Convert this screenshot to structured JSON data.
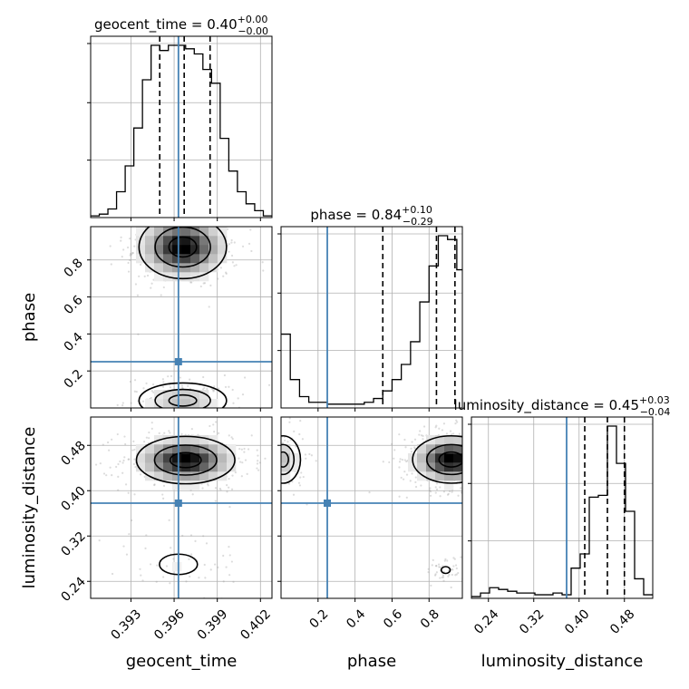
{
  "chart_data": {
    "type": "corner",
    "parameters": [
      {
        "key": "geocent_time",
        "label": "geocent_time",
        "range": [
          0.3902,
          0.4028
        ],
        "ticks": [
          0.393,
          0.396,
          0.399,
          0.402
        ],
        "tick_labels": [
          "0.393",
          "0.396",
          "0.399",
          "0.402"
        ],
        "injection": 0.3963
      },
      {
        "key": "phase",
        "label": "phase",
        "range": [
          0.0,
          0.98
        ],
        "ticks": [
          0.2,
          0.4,
          0.6,
          0.8
        ],
        "tick_labels": [
          "0.2",
          "0.4",
          "0.6",
          "0.8"
        ],
        "injection": 0.25
      },
      {
        "key": "luminosity_distance",
        "label": "luminosity_distance",
        "range": [
          0.21,
          0.53
        ],
        "ticks": [
          0.24,
          0.32,
          0.4,
          0.48
        ],
        "tick_labels": [
          "0.24",
          "0.32",
          "0.40",
          "0.48"
        ],
        "injection": 0.378
      }
    ],
    "titles": [
      {
        "text": "geocent_time = 0.40",
        "sup": "+0.00",
        "sub": "−0.00"
      },
      {
        "text": "phase = 0.84",
        "sup": "+0.10",
        "sub": "−0.29"
      },
      {
        "text": "luminosity_distance = 0.45",
        "sup": "+0.03",
        "sub": "−0.04"
      }
    ],
    "diagonal": [
      {
        "edges": [
          0.3902,
          0.3908,
          0.3914,
          0.392,
          0.3926,
          0.3932,
          0.3938,
          0.3944,
          0.395,
          0.3956,
          0.3962,
          0.3968,
          0.3974,
          0.398,
          0.3986,
          0.3992,
          0.3998,
          0.4004,
          0.401,
          0.4016,
          0.4022,
          0.4028
        ],
        "counts": [
          1,
          2,
          5,
          15,
          30,
          52,
          80,
          100,
          97,
          100,
          100,
          98,
          95,
          86,
          78,
          46,
          27,
          15,
          8,
          4,
          1
        ],
        "quantiles": [
          0.395,
          0.3967,
          0.3985
        ],
        "injection": 0.3963
      },
      {
        "edges": [
          0.0,
          0.05,
          0.1,
          0.15,
          0.2,
          0.25,
          0.3,
          0.35,
          0.4,
          0.45,
          0.5,
          0.55,
          0.6,
          0.65,
          0.7,
          0.75,
          0.8,
          0.85,
          0.9,
          0.95,
          1.0
        ],
        "counts": [
          39,
          15,
          6,
          3,
          3,
          2,
          2,
          2,
          2,
          3,
          5,
          9,
          15,
          23,
          35,
          56,
          75,
          91,
          89,
          73
        ],
        "quantiles": [
          0.55,
          0.84,
          0.94
        ],
        "injection": 0.25
      },
      {
        "edges": [
          0.21,
          0.226,
          0.242,
          0.258,
          0.274,
          0.29,
          0.306,
          0.322,
          0.338,
          0.354,
          0.37,
          0.386,
          0.402,
          0.418,
          0.434,
          0.45,
          0.466,
          0.482,
          0.498,
          0.514,
          0.53
        ],
        "counts": [
          1,
          3,
          6,
          5,
          4,
          3,
          3,
          2,
          2,
          3,
          2,
          17,
          25,
          57,
          58,
          97,
          76,
          49,
          11,
          2
        ],
        "quantiles": [
          0.41,
          0.45,
          0.48
        ],
        "injection": 0.378
      }
    ],
    "pairs": [
      {
        "x": 0,
        "y": 1,
        "modes": [
          {
            "cx": 0.3966,
            "cy": 0.87,
            "sx": 0.0016,
            "sy": 0.09,
            "weight": 1.0
          },
          {
            "cx": 0.3966,
            "cy": 0.04,
            "sx": 0.0016,
            "sy": 0.05,
            "weight": 0.35
          }
        ],
        "injection": [
          0.3963,
          0.25
        ]
      },
      {
        "x": 0,
        "y": 2,
        "modes": [
          {
            "cx": 0.3968,
            "cy": 0.454,
            "sx": 0.0018,
            "sy": 0.022,
            "weight": 1.0
          },
          {
            "cx": 0.3963,
            "cy": 0.27,
            "sx": 0.0022,
            "sy": 0.03,
            "weight": 0.12
          }
        ],
        "injection": [
          0.3963,
          0.378
        ]
      },
      {
        "x": 1,
        "y": 2,
        "modes": [
          {
            "cx": 0.92,
            "cy": 0.455,
            "sx": 0.11,
            "sy": 0.022,
            "weight": 1.0
          },
          {
            "cx": 0.01,
            "cy": 0.455,
            "sx": 0.05,
            "sy": 0.022,
            "weight": 0.35
          },
          {
            "cx": 0.89,
            "cy": 0.26,
            "sx": 0.04,
            "sy": 0.01,
            "weight": 0.1
          }
        ],
        "injection": [
          0.25,
          0.378
        ]
      }
    ],
    "colors": {
      "truth": "#4682b4",
      "hist": "#000000",
      "grid": "#b0b0b0",
      "points": "#9a9a9a"
    },
    "grid": true
  }
}
